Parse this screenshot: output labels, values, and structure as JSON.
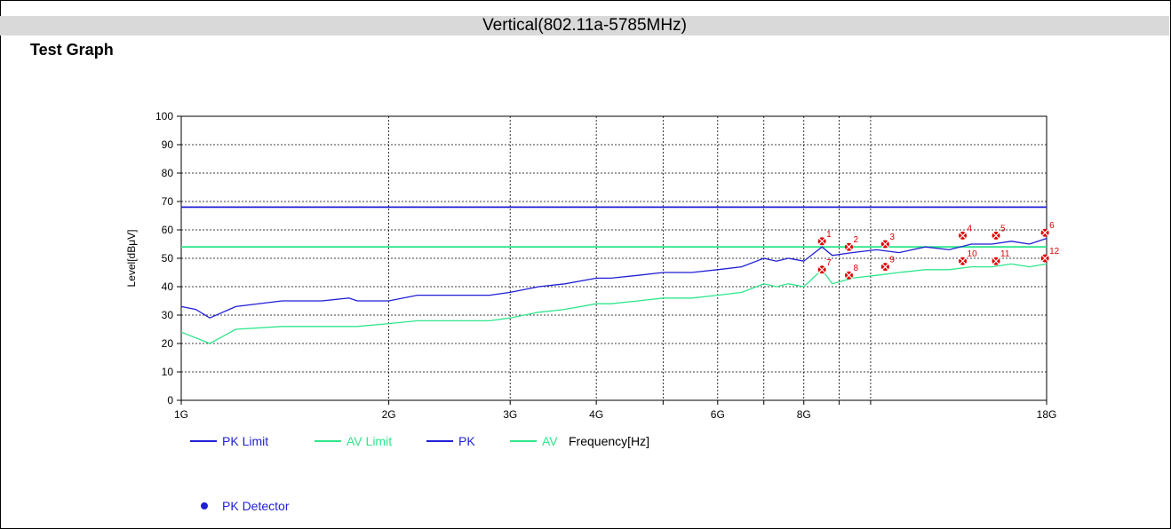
{
  "header": {
    "title": "Vertical(802.11a-5785MHz)"
  },
  "section": {
    "title": "Test Graph"
  },
  "chart_data": {
    "type": "line",
    "title": "",
    "xlabel": "Frequency[Hz]",
    "ylabel": "Level[dBμV]",
    "x_scale": "log",
    "xlim": [
      1,
      18
    ],
    "ylim": [
      0,
      100
    ],
    "y_ticks": [
      0,
      10,
      20,
      30,
      40,
      50,
      60,
      70,
      80,
      90,
      100
    ],
    "x_ticks": [
      {
        "value": 1,
        "label": "1G"
      },
      {
        "value": 2,
        "label": "2G"
      },
      {
        "value": 3,
        "label": "3G"
      },
      {
        "value": 4,
        "label": "4G"
      },
      {
        "value": 5,
        "label": ""
      },
      {
        "value": 6,
        "label": "6G"
      },
      {
        "value": 7,
        "label": ""
      },
      {
        "value": 8,
        "label": "8G"
      },
      {
        "value": 9,
        "label": ""
      },
      {
        "value": 10,
        "label": ""
      },
      {
        "value": 18,
        "label": "18G"
      }
    ],
    "grid": true,
    "series": [
      {
        "name": "PK Limit",
        "color": "#1f1fd6",
        "x": [
          1,
          18
        ],
        "y": [
          68,
          68
        ]
      },
      {
        "name": "AV Limit",
        "color": "#2ee68a",
        "x": [
          1,
          18
        ],
        "y": [
          54,
          54
        ]
      },
      {
        "name": "PK",
        "color": "#1f1fd6",
        "x": [
          1,
          1.05,
          1.1,
          1.2,
          1.4,
          1.6,
          1.75,
          1.8,
          2.0,
          2.2,
          2.5,
          2.8,
          3.0,
          3.3,
          3.6,
          4.0,
          4.2,
          4.6,
          5.0,
          5.5,
          6.0,
          6.5,
          7.0,
          7.3,
          7.6,
          8.0,
          8.5,
          8.8,
          9.4,
          10.2,
          11,
          12,
          13,
          14,
          15,
          16,
          17,
          18
        ],
        "y": [
          33,
          32,
          29,
          33,
          35,
          35,
          36,
          35,
          35,
          37,
          37,
          37,
          38,
          40,
          41,
          43,
          43,
          44,
          45,
          45,
          46,
          47,
          50,
          49,
          50,
          49,
          54,
          51,
          52,
          53,
          52,
          54,
          53,
          55,
          55,
          56,
          55,
          57
        ]
      },
      {
        "name": "AV",
        "color": "#2ee68a",
        "x": [
          1,
          1.05,
          1.1,
          1.2,
          1.4,
          1.6,
          1.75,
          1.8,
          2.0,
          2.2,
          2.5,
          2.8,
          3.0,
          3.3,
          3.6,
          4.0,
          4.2,
          4.6,
          5.0,
          5.5,
          6.0,
          6.5,
          7.0,
          7.3,
          7.6,
          8.0,
          8.5,
          8.8,
          9.4,
          10.2,
          11,
          12,
          13,
          14,
          15,
          16,
          17,
          18
        ],
        "y": [
          24,
          22,
          20,
          25,
          26,
          26,
          26,
          26,
          27,
          28,
          28,
          28,
          29,
          31,
          32,
          34,
          34,
          35,
          36,
          36,
          37,
          38,
          41,
          40,
          41,
          40,
          46,
          41,
          43,
          44,
          45,
          46,
          46,
          47,
          47,
          48,
          47,
          48
        ]
      }
    ],
    "markers": [
      {
        "label": "1",
        "x": 8.5,
        "y": 56
      },
      {
        "label": "2",
        "x": 9.3,
        "y": 54
      },
      {
        "label": "3",
        "x": 10.5,
        "y": 55
      },
      {
        "label": "4",
        "x": 13.6,
        "y": 58
      },
      {
        "label": "5",
        "x": 15.2,
        "y": 58
      },
      {
        "label": "6",
        "x": 17.9,
        "y": 59
      },
      {
        "label": "7",
        "x": 8.5,
        "y": 46
      },
      {
        "label": "8",
        "x": 9.3,
        "y": 44
      },
      {
        "label": "9",
        "x": 10.5,
        "y": 47
      },
      {
        "label": "10",
        "x": 13.6,
        "y": 49
      },
      {
        "label": "11",
        "x": 15.2,
        "y": 49
      },
      {
        "label": "12",
        "x": 17.9,
        "y": 50
      }
    ],
    "legend": {
      "placement": "bottom",
      "entries": [
        {
          "label": "PK Limit",
          "color": "#1f1fd6"
        },
        {
          "label": "AV Limit",
          "color": "#2ee68a"
        },
        {
          "label": "PK",
          "color": "#1f1fd6"
        },
        {
          "label": "AV",
          "color": "#2ee68a"
        }
      ],
      "detector_label": "PK Detector",
      "marker_color": "#e00000"
    }
  }
}
